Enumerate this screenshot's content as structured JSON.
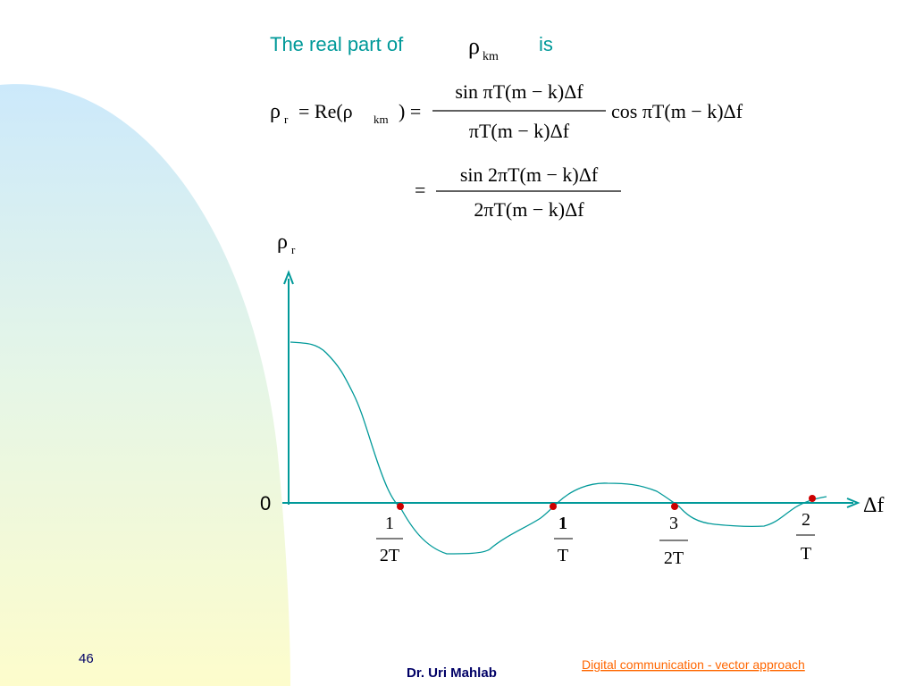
{
  "title": {
    "text": "The real part of",
    "symbol": "ρ",
    "subscript": "km",
    "suffix": "is"
  },
  "formula": {
    "line1": {
      "lhs_symbol": "ρ",
      "lhs_subscript": "r",
      "re_open": "= Re(ρ",
      "re_subscript": "km",
      "re_close": ") =",
      "numerator": "sin πT(m − k)Δf",
      "denominator": "πT(m − k)Δf",
      "factor": "cos πT(m − k)Δf"
    },
    "line2": {
      "equals": "=",
      "numerator": "sin 2πT(m − k)Δf",
      "denominator": "2πT(m − k)Δf"
    }
  },
  "plot": {
    "y_label": {
      "symbol": "ρ",
      "subscript": "r"
    },
    "origin_label": "0",
    "x_label": "Δf",
    "ticks": [
      {
        "numerator": "1",
        "denominator": "2T"
      },
      {
        "numerator": "1",
        "denominator": "T"
      },
      {
        "numerator": "3",
        "denominator": "2T"
      },
      {
        "numerator": "2",
        "denominator": "T"
      }
    ]
  },
  "footer": {
    "page": "46",
    "author": "Dr. Uri Mahlab",
    "link": "Digital communication  - vector approach"
  }
}
